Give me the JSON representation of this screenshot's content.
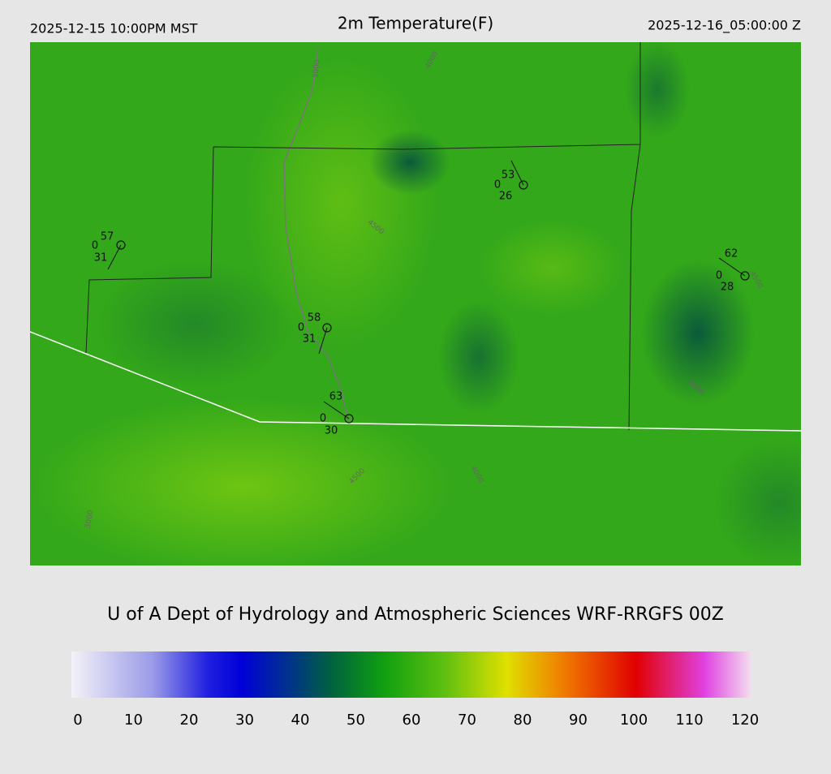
{
  "header": {
    "valid_local": "2025-12-15 10:00PM MST",
    "title": "2m Temperature(F)",
    "valid_utc": "2025-12-16_05:00:00 Z"
  },
  "stations": [
    {
      "temperature": 57,
      "wind": 0,
      "dewpoint": 31
    },
    {
      "temperature": 58,
      "wind": 0,
      "dewpoint": 31
    },
    {
      "temperature": 63,
      "wind": 0,
      "dewpoint": 30
    },
    {
      "temperature": 53,
      "wind": 0,
      "dewpoint": 26
    },
    {
      "temperature": 62,
      "wind": 0,
      "dewpoint": 28
    }
  ],
  "contour_labels": [
    "3000",
    "4000",
    "4500",
    "4500",
    "4000",
    "4000",
    "4500",
    "3000"
  ],
  "footer": {
    "credit": "U of A Dept of Hydrology and Atmospheric Sciences WRF-RRGFS 00Z"
  },
  "colorbar": {
    "ticks": [
      0,
      10,
      20,
      30,
      40,
      50,
      60,
      70,
      80,
      90,
      100,
      110,
      120
    ]
  }
}
